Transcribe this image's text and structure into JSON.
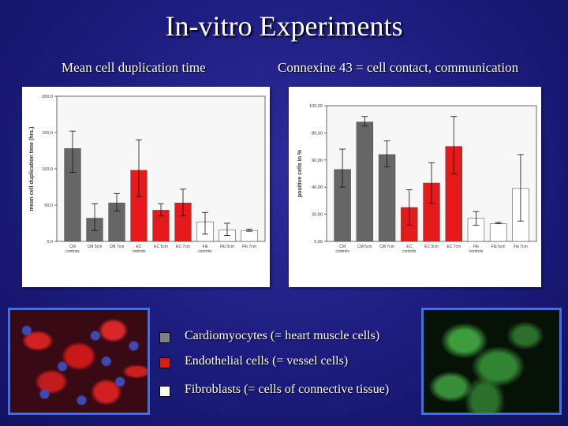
{
  "slide": {
    "title": "In-vitro Experiments",
    "subtitle_left": "Mean cell duplication time",
    "subtitle_right": "Connexine 43 = cell contact, communication"
  },
  "legend": [
    {
      "color": "#808080",
      "label": "Cardiomyocytes (= heart muscle cells)"
    },
    {
      "color": "#e01818",
      "label": "Endothelial cells (= vessel cells)"
    },
    {
      "color": "#ffffff",
      "label": "Fibroblasts (= cells of connective tissue)"
    }
  ],
  "chart_data": [
    {
      "type": "bar",
      "ylabel": "mean cell duplication time (hrs.)",
      "ylim": [
        0,
        200
      ],
      "yticks": [
        0,
        50,
        100,
        150,
        200
      ],
      "ytick_labels": [
        "0,0",
        "50,0",
        "100,0",
        "150,0",
        "200,0"
      ],
      "categories": [
        {
          "label": "CM controls",
          "value": 128,
          "err_low": 95,
          "err_high": 152,
          "color": "#666666"
        },
        {
          "label": "CM 5cm",
          "value": 32,
          "err_low": 15,
          "err_high": 52,
          "color": "#666666"
        },
        {
          "label": "CM 7cm",
          "value": 53,
          "err_low": 42,
          "err_high": 66,
          "color": "#666666"
        },
        {
          "label": "EC controls",
          "value": 98,
          "err_low": 62,
          "err_high": 140,
          "color": "#e61a1a"
        },
        {
          "label": "EC 5cm",
          "value": 43,
          "err_low": 35,
          "err_high": 52,
          "color": "#e61a1a"
        },
        {
          "label": "EC 7cm",
          "value": 53,
          "err_low": 35,
          "err_high": 72,
          "color": "#e61a1a"
        },
        {
          "label": "Fib controls",
          "value": 27,
          "err_low": 10,
          "err_high": 40,
          "color": "#ffffff"
        },
        {
          "label": "Fib 5cm",
          "value": 16,
          "err_low": 8,
          "err_high": 25,
          "color": "#ffffff"
        },
        {
          "label": "Fib 7cm",
          "value": 15,
          "err_low": 14,
          "err_high": 17,
          "color": "#ffffff"
        }
      ]
    },
    {
      "type": "bar",
      "ylabel": "positive cells in %",
      "ylim": [
        0,
        100
      ],
      "yticks": [
        0,
        20,
        40,
        60,
        80,
        100
      ],
      "ytick_labels": [
        "0,00",
        "20,00",
        "40,00",
        "60,00",
        "80,00",
        "100,00"
      ],
      "categories": [
        {
          "label": "CM controls",
          "value": 53,
          "err_low": 40,
          "err_high": 68,
          "color": "#666666"
        },
        {
          "label": "CM 5cm",
          "value": 88,
          "err_low": 85,
          "err_high": 92,
          "color": "#666666"
        },
        {
          "label": "CM 7cm",
          "value": 64,
          "err_low": 55,
          "err_high": 74,
          "color": "#666666"
        },
        {
          "label": "EC controls",
          "value": 25,
          "err_low": 12,
          "err_high": 38,
          "color": "#e61a1a"
        },
        {
          "label": "EC 5cm",
          "value": 43,
          "err_low": 28,
          "err_high": 58,
          "color": "#e61a1a"
        },
        {
          "label": "EC 7cm",
          "value": 70,
          "err_low": 50,
          "err_high": 92,
          "color": "#e61a1a"
        },
        {
          "label": "Fib controls",
          "value": 17,
          "err_low": 12,
          "err_high": 22,
          "color": "#ffffff"
        },
        {
          "label": "Fib 5cm",
          "value": 13,
          "err_low": 13,
          "err_high": 14,
          "color": "#ffffff"
        },
        {
          "label": "Fib 7cm",
          "value": 39,
          "err_low": 15,
          "err_high": 64,
          "color": "#ffffff"
        }
      ]
    }
  ]
}
